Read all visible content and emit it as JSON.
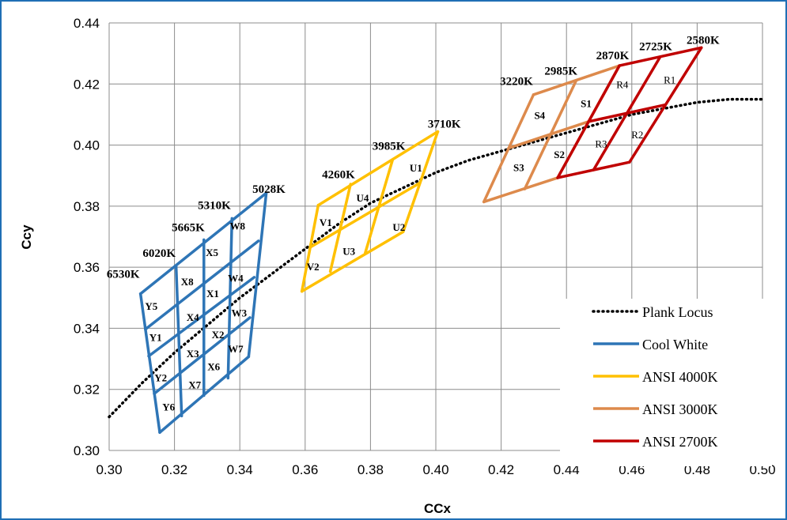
{
  "chart_data": {
    "type": "line",
    "xlabel": "CCx",
    "ylabel": "Ccy",
    "xlim": [
      0.3,
      0.5
    ],
    "ylim": [
      0.3,
      0.44
    ],
    "x_ticks": [
      "0.30",
      "0.32",
      "0.34",
      "0.36",
      "0.38",
      "0.40",
      "0.42",
      "0.44",
      "0.46",
      "0.48",
      "0.50"
    ],
    "y_ticks": [
      "0.30",
      "0.32",
      "0.34",
      "0.36",
      "0.38",
      "0.40",
      "0.42",
      "0.44"
    ],
    "grid": true,
    "legend_position": "bottom-right",
    "series": [
      {
        "name": "Plank Locus",
        "color": "#000000",
        "style": "dotted",
        "points": [
          [
            0.3,
            0.311
          ],
          [
            0.31,
            0.322
          ],
          [
            0.32,
            0.332
          ],
          [
            0.33,
            0.341
          ],
          [
            0.34,
            0.35
          ],
          [
            0.35,
            0.358
          ],
          [
            0.36,
            0.366
          ],
          [
            0.37,
            0.374
          ],
          [
            0.38,
            0.381
          ],
          [
            0.39,
            0.386
          ],
          [
            0.4,
            0.391
          ],
          [
            0.41,
            0.395
          ],
          [
            0.42,
            0.398
          ],
          [
            0.43,
            0.401
          ],
          [
            0.44,
            0.404
          ],
          [
            0.45,
            0.407
          ],
          [
            0.46,
            0.41
          ],
          [
            0.47,
            0.412
          ],
          [
            0.48,
            0.414
          ],
          [
            0.49,
            0.415
          ],
          [
            0.5,
            0.415
          ]
        ]
      },
      {
        "name": "Cool White",
        "color": "#2e75b6",
        "grid_lines": [
          [
            [
              0.3155,
              0.3059
            ],
            [
              0.3096,
              0.3513
            ]
          ],
          [
            [
              0.3222,
              0.3113
            ],
            [
              0.3205,
              0.3603
            ]
          ],
          [
            [
              0.329,
              0.318
            ],
            [
              0.329,
              0.369
            ]
          ],
          [
            [
              0.3364,
              0.3237
            ],
            [
              0.3376,
              0.376
            ]
          ],
          [
            [
              0.3427,
              0.3307
            ],
            [
              0.3481,
              0.3843
            ]
          ],
          [
            [
              0.3155,
              0.3059
            ],
            [
              0.3427,
              0.3307
            ]
          ],
          [
            [
              0.3138,
              0.3186
            ],
            [
              0.3431,
              0.3435
            ]
          ],
          [
            [
              0.3121,
              0.3309
            ],
            [
              0.3444,
              0.3567
            ]
          ],
          [
            [
              0.3111,
              0.3397
            ],
            [
              0.3457,
              0.3686
            ]
          ],
          [
            [
              0.3096,
              0.3513
            ],
            [
              0.3481,
              0.3843
            ]
          ]
        ]
      },
      {
        "name": "ANSI 4000K",
        "color": "#ffc000",
        "grid_lines": [
          [
            [
              0.359,
              0.3521
            ],
            [
              0.364,
              0.3803
            ]
          ],
          [
            [
              0.3677,
              0.3586
            ],
            [
              0.3739,
              0.3872
            ]
          ],
          [
            [
              0.3784,
              0.3647
            ],
            [
              0.3868,
              0.3953
            ]
          ],
          [
            [
              0.39,
              0.3716
            ],
            [
              0.4006,
              0.4044
            ]
          ],
          [
            [
              0.359,
              0.3521
            ],
            [
              0.39,
              0.3716
            ]
          ],
          [
            [
              0.3615,
              0.3665
            ],
            [
              0.3951,
              0.3876
            ]
          ],
          [
            [
              0.364,
              0.3803
            ],
            [
              0.4006,
              0.4044
            ]
          ]
        ]
      },
      {
        "name": "ANSI 3000K",
        "color": "#dd8a4c",
        "grid_lines": [
          [
            [
              0.4147,
              0.3814
            ],
            [
              0.4299,
              0.4165
            ]
          ],
          [
            [
              0.4272,
              0.3856
            ],
            [
              0.443,
              0.4212
            ]
          ],
          [
            [
              0.4373,
              0.3893
            ],
            [
              0.4562,
              0.426
            ]
          ],
          [
            [
              0.4147,
              0.3814
            ],
            [
              0.4373,
              0.3893
            ]
          ],
          [
            [
              0.4223,
              0.399
            ],
            [
              0.4468,
              0.4077
            ]
          ],
          [
            [
              0.4299,
              0.4165
            ],
            [
              0.4562,
              0.426
            ]
          ]
        ]
      },
      {
        "name": "ANSI 2700K",
        "color": "#c00000",
        "grid_lines": [
          [
            [
              0.4373,
              0.3893
            ],
            [
              0.4562,
              0.426
            ]
          ],
          [
            [
              0.4483,
              0.3919
            ],
            [
              0.4687,
              0.4289
            ]
          ],
          [
            [
              0.4593,
              0.3944
            ],
            [
              0.4813,
              0.4319
            ]
          ],
          [
            [
              0.4373,
              0.3893
            ],
            [
              0.4593,
              0.3944
            ]
          ],
          [
            [
              0.4468,
              0.4077
            ],
            [
              0.4703,
              0.4132
            ]
          ],
          [
            [
              0.4562,
              0.426
            ],
            [
              0.4813,
              0.4319
            ]
          ]
        ]
      }
    ],
    "cct_labels": [
      {
        "text": "6530K",
        "x": 0.3043,
        "y": 0.3565
      },
      {
        "text": "6020K",
        "x": 0.3153,
        "y": 0.3634
      },
      {
        "text": "5665K",
        "x": 0.3242,
        "y": 0.3718
      },
      {
        "text": "5310K",
        "x": 0.3322,
        "y": 0.379
      },
      {
        "text": "5028K",
        "x": 0.3489,
        "y": 0.3844
      },
      {
        "text": "4260K",
        "x": 0.3702,
        "y": 0.3891
      },
      {
        "text": "3985K",
        "x": 0.3856,
        "y": 0.3985
      },
      {
        "text": "3710K",
        "x": 0.4026,
        "y": 0.4057
      },
      {
        "text": "3220K",
        "x": 0.4247,
        "y": 0.4197
      },
      {
        "text": "2985K",
        "x": 0.4383,
        "y": 0.423
      },
      {
        "text": "2870K",
        "x": 0.4541,
        "y": 0.4281
      },
      {
        "text": "2725K",
        "x": 0.4673,
        "y": 0.4311
      },
      {
        "text": "2580K",
        "x": 0.4818,
        "y": 0.4332
      }
    ],
    "bin_labels": [
      {
        "text": "Y5",
        "x": 0.3129,
        "y": 0.3461,
        "style": "bold"
      },
      {
        "text": "Y1",
        "x": 0.3142,
        "y": 0.3358,
        "style": "bold"
      },
      {
        "text": "Y2",
        "x": 0.3158,
        "y": 0.3226,
        "style": "bold"
      },
      {
        "text": "Y6",
        "x": 0.3182,
        "y": 0.3131,
        "style": "bold"
      },
      {
        "text": "X8",
        "x": 0.3239,
        "y": 0.3541,
        "style": "bold"
      },
      {
        "text": "X4",
        "x": 0.3256,
        "y": 0.3425,
        "style": "bold"
      },
      {
        "text": "X3",
        "x": 0.3256,
        "y": 0.3306,
        "style": "bold"
      },
      {
        "text": "X7",
        "x": 0.3262,
        "y": 0.3203,
        "style": "bold"
      },
      {
        "text": "X5",
        "x": 0.3315,
        "y": 0.3637,
        "style": "bold"
      },
      {
        "text": "X1",
        "x": 0.3317,
        "y": 0.3502,
        "style": "bold"
      },
      {
        "text": "X2",
        "x": 0.3333,
        "y": 0.3368,
        "style": "bold"
      },
      {
        "text": "X6",
        "x": 0.332,
        "y": 0.3263,
        "style": "bold"
      },
      {
        "text": "W8",
        "x": 0.3393,
        "y": 0.3723,
        "style": "bold"
      },
      {
        "text": "W4",
        "x": 0.3387,
        "y": 0.3553,
        "style": "bold"
      },
      {
        "text": "W3",
        "x": 0.3398,
        "y": 0.3439,
        "style": "bold"
      },
      {
        "text": "W7",
        "x": 0.3387,
        "y": 0.3321,
        "style": "bold"
      },
      {
        "text": "V1",
        "x": 0.3663,
        "y": 0.3735,
        "style": "bold"
      },
      {
        "text": "V2",
        "x": 0.3624,
        "y": 0.359,
        "style": "bold"
      },
      {
        "text": "U4",
        "x": 0.3776,
        "y": 0.3815,
        "style": "bold"
      },
      {
        "text": "U3",
        "x": 0.3734,
        "y": 0.364,
        "style": "bold"
      },
      {
        "text": "U1",
        "x": 0.3939,
        "y": 0.3914,
        "style": "bold"
      },
      {
        "text": "U2",
        "x": 0.3887,
        "y": 0.3719,
        "style": "bold"
      },
      {
        "text": "S4",
        "x": 0.4318,
        "y": 0.4085,
        "style": "bold"
      },
      {
        "text": "S3",
        "x": 0.4254,
        "y": 0.3915,
        "style": "bold"
      },
      {
        "text": "S1",
        "x": 0.446,
        "y": 0.4125,
        "style": "bold"
      },
      {
        "text": "S2",
        "x": 0.4378,
        "y": 0.3957,
        "style": "bold"
      },
      {
        "text": "R4",
        "x": 0.4571,
        "y": 0.4187,
        "style": "normal"
      },
      {
        "text": "R3",
        "x": 0.4506,
        "y": 0.3992,
        "style": "normal"
      },
      {
        "text": "R1",
        "x": 0.4716,
        "y": 0.4202,
        "style": "normal"
      },
      {
        "text": "R2",
        "x": 0.4617,
        "y": 0.4022,
        "style": "normal"
      }
    ]
  }
}
